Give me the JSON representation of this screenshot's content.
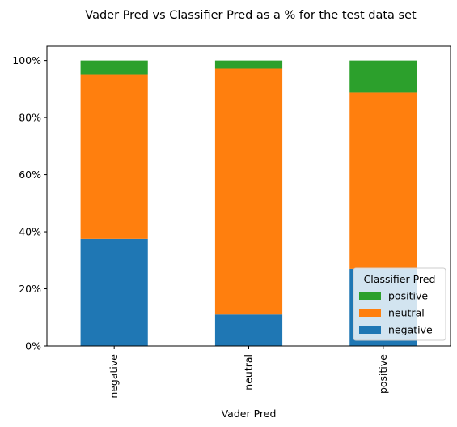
{
  "chart_data": {
    "type": "bar",
    "stacked": true,
    "title": "Vader Pred vs Classifier Pred as a % for the test data set",
    "xlabel": "Vader Pred",
    "ylabel": "",
    "categories": [
      "negative",
      "neutral",
      "positive"
    ],
    "series": [
      {
        "name": "negative",
        "values": [
          0.375,
          0.11,
          0.27
        ],
        "color": "#1f77b4"
      },
      {
        "name": "neutral",
        "values": [
          0.577,
          0.862,
          0.617
        ],
        "color": "#ff7f0e"
      },
      {
        "name": "positive",
        "values": [
          0.048,
          0.028,
          0.113
        ],
        "color": "#2ca02c"
      }
    ],
    "ylim": [
      0,
      1.05
    ],
    "yticks": [
      0,
      0.2,
      0.4,
      0.6,
      0.8,
      1.0
    ],
    "ytick_labels": [
      "0%",
      "20%",
      "40%",
      "60%",
      "80%",
      "100%"
    ],
    "grid": false,
    "legend": {
      "title": "Classifier Pred",
      "placement": "bottom-right",
      "order": [
        "positive",
        "neutral",
        "negative"
      ]
    }
  }
}
